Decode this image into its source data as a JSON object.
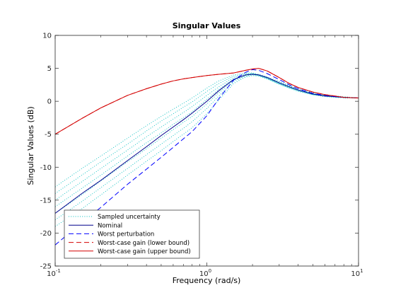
{
  "chart_data": {
    "type": "line",
    "title": "Singular Values",
    "xlabel": "Frequency (rad/s)",
    "ylabel": "Singular Values (dB)",
    "xscale": "log",
    "xlim": [
      0.1,
      10
    ],
    "ylim": [
      -25,
      10
    ],
    "xticks": [
      {
        "value": 0.1,
        "base": "10",
        "exp": "-1"
      },
      {
        "value": 1,
        "base": "10",
        "exp": "0"
      },
      {
        "value": 10,
        "base": "10",
        "exp": "1"
      }
    ],
    "yticks": [
      {
        "value": -25,
        "label": "-25"
      },
      {
        "value": -20,
        "label": "-20"
      },
      {
        "value": -15,
        "label": "-15"
      },
      {
        "value": -10,
        "label": "-10"
      },
      {
        "value": -5,
        "label": "-5"
      },
      {
        "value": 0,
        "label": "0"
      },
      {
        "value": 5,
        "label": "5"
      },
      {
        "value": 10,
        "label": "10"
      }
    ],
    "grid": false,
    "legend_position": "bottom-left",
    "x": [
      0.1,
      0.15,
      0.2,
      0.3,
      0.4,
      0.5,
      0.6,
      0.7,
      0.8,
      1.0,
      1.2,
      1.5,
      1.8,
      2.0,
      2.2,
      2.5,
      3.0,
      3.5,
      4.0,
      5.0,
      6.0,
      7.0,
      8.0,
      10.0
    ],
    "series": [
      {
        "name": "Sampled uncertainty",
        "color": "#00bfbf",
        "style": "dotted",
        "samples": [
          [
            -13.0,
            -10.2,
            -8.3,
            -5.6,
            -3.7,
            -2.3,
            -1.2,
            -0.3,
            0.5,
            2.0,
            3.1,
            4.0,
            4.3,
            4.3,
            4.1,
            3.7,
            3.0,
            2.4,
            1.9,
            1.3,
            1.0,
            0.8,
            0.7,
            0.5
          ],
          [
            -14.0,
            -11.2,
            -9.2,
            -6.5,
            -4.5,
            -3.0,
            -1.9,
            -0.9,
            -0.1,
            1.5,
            2.7,
            3.8,
            4.2,
            4.2,
            4.0,
            3.6,
            2.9,
            2.3,
            1.8,
            1.2,
            0.9,
            0.7,
            0.6,
            0.5
          ],
          [
            -15.0,
            -12.2,
            -10.2,
            -7.4,
            -5.4,
            -3.9,
            -2.7,
            -1.7,
            -0.8,
            0.9,
            2.2,
            3.6,
            4.1,
            4.2,
            4.0,
            3.6,
            2.8,
            2.2,
            1.7,
            1.1,
            0.9,
            0.7,
            0.6,
            0.5
          ],
          [
            -16.0,
            -13.2,
            -11.2,
            -8.3,
            -6.3,
            -4.8,
            -3.5,
            -2.5,
            -1.6,
            0.3,
            1.8,
            3.4,
            4.0,
            4.1,
            4.0,
            3.5,
            2.7,
            2.1,
            1.7,
            1.1,
            0.8,
            0.7,
            0.6,
            0.5
          ],
          [
            -17.0,
            -14.2,
            -12.1,
            -9.2,
            -7.2,
            -5.6,
            -4.3,
            -3.2,
            -2.3,
            -0.4,
            1.3,
            3.2,
            3.9,
            4.1,
            3.9,
            3.5,
            2.7,
            2.1,
            1.6,
            1.0,
            0.8,
            0.7,
            0.6,
            0.5
          ],
          [
            -18.0,
            -15.2,
            -13.1,
            -10.2,
            -8.1,
            -6.5,
            -5.2,
            -4.1,
            -3.1,
            -1.1,
            0.8,
            3.0,
            3.8,
            4.0,
            3.9,
            3.4,
            2.6,
            2.0,
            1.6,
            1.0,
            0.8,
            0.6,
            0.6,
            0.5
          ],
          [
            -19.0,
            -16.3,
            -14.2,
            -11.2,
            -9.1,
            -7.5,
            -6.1,
            -5.0,
            -4.0,
            -1.9,
            0.2,
            2.7,
            3.7,
            3.9,
            3.8,
            3.4,
            2.6,
            2.0,
            1.5,
            1.0,
            0.7,
            0.6,
            0.5,
            0.5
          ]
        ]
      },
      {
        "name": "Nominal",
        "color": "#00008b",
        "style": "solid",
        "y": [
          -17.0,
          -14.0,
          -12.0,
          -9.0,
          -6.9,
          -5.2,
          -3.9,
          -2.8,
          -1.8,
          0.0,
          1.6,
          3.3,
          4.0,
          4.1,
          4.0,
          3.6,
          2.8,
          2.2,
          1.7,
          1.1,
          0.8,
          0.7,
          0.6,
          0.5
        ]
      },
      {
        "name": "Worst perturbation",
        "color": "#0000ff",
        "style": "dashed",
        "y": [
          -21.8,
          -18.4,
          -16.1,
          -12.6,
          -10.3,
          -8.5,
          -7.0,
          -5.7,
          -4.6,
          -2.2,
          0.4,
          3.2,
          4.4,
          4.8,
          4.7,
          4.2,
          3.3,
          2.5,
          1.9,
          1.2,
          0.9,
          0.7,
          0.6,
          0.5
        ]
      },
      {
        "name": "Worst-case gain (lower bound)",
        "color": "#d40000",
        "style": "dashed",
        "y": [
          -5.0,
          -2.6,
          -1.0,
          0.9,
          1.9,
          2.6,
          3.1,
          3.4,
          3.6,
          3.9,
          4.1,
          4.3,
          4.7,
          4.9,
          5.0,
          4.6,
          3.6,
          2.7,
          2.1,
          1.4,
          1.0,
          0.8,
          0.6,
          0.5
        ]
      },
      {
        "name": "Worst-case gain (upper bound)",
        "color": "#d40000",
        "style": "solid",
        "y": [
          -5.0,
          -2.6,
          -1.0,
          0.9,
          1.9,
          2.6,
          3.1,
          3.4,
          3.6,
          3.9,
          4.1,
          4.3,
          4.7,
          4.9,
          5.0,
          4.6,
          3.6,
          2.7,
          2.1,
          1.4,
          1.0,
          0.8,
          0.6,
          0.5
        ]
      }
    ]
  }
}
